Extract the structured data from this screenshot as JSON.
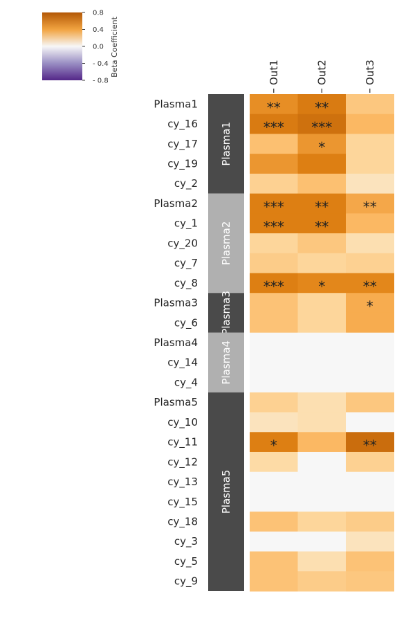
{
  "chart_data": {
    "type": "heatmap",
    "colorbar": {
      "label": "Beta Coefficient",
      "ticks": [
        "0.8",
        "0.4",
        "0.0",
        "-0.4",
        "-0.8"
      ],
      "vmin": -0.8,
      "vmax": 0.8,
      "colors": {
        "low": "#542788",
        "mid": "#f7f7f7",
        "high": "#b35806"
      }
    },
    "columns": [
      "Out1",
      "Out2",
      "Out3"
    ],
    "rows": [
      "Plasma1",
      "cy_16",
      "cy_17",
      "cy_19",
      "cy_2",
      "Plasma2",
      "cy_1",
      "cy_20",
      "cy_7",
      "cy_8",
      "Plasma3",
      "cy_6",
      "Plasma4",
      "cy_14",
      "cy_4",
      "Plasma5",
      "cy_10",
      "cy_11",
      "cy_12",
      "cy_13",
      "cy_15",
      "cy_18",
      "cy_3",
      "cy_5",
      "cy_9"
    ],
    "groups": [
      {
        "label": "Plasma1",
        "start": 0,
        "count": 5,
        "color": "#4a4a4a"
      },
      {
        "label": "Plasma2",
        "start": 5,
        "count": 5,
        "color": "#b0b0b0"
      },
      {
        "label": "Plasma3",
        "start": 10,
        "count": 2,
        "color": "#4a4a4a"
      },
      {
        "label": "Plasma4",
        "start": 12,
        "count": 3,
        "color": "#b0b0b0"
      },
      {
        "label": "Plasma5",
        "start": 15,
        "count": 10,
        "color": "#4a4a4a"
      }
    ],
    "values": [
      [
        0.45,
        0.55,
        0.22
      ],
      [
        0.55,
        0.62,
        0.28
      ],
      [
        0.25,
        0.42,
        0.16
      ],
      [
        0.42,
        0.52,
        0.16
      ],
      [
        0.18,
        0.25,
        0.1
      ],
      [
        0.52,
        0.52,
        0.35
      ],
      [
        0.52,
        0.52,
        0.28
      ],
      [
        0.16,
        0.22,
        0.12
      ],
      [
        0.2,
        0.16,
        0.18
      ],
      [
        0.52,
        0.48,
        0.48
      ],
      [
        0.24,
        0.16,
        0.33
      ],
      [
        0.24,
        0.16,
        0.33
      ],
      [
        0.0,
        0.0,
        0.0
      ],
      [
        0.0,
        0.0,
        0.0
      ],
      [
        0.0,
        0.0,
        0.0
      ],
      [
        0.18,
        0.12,
        0.22
      ],
      [
        0.1,
        0.12,
        0.0
      ],
      [
        0.52,
        0.28,
        0.65
      ],
      [
        0.14,
        0.0,
        0.18
      ],
      [
        0.0,
        0.0,
        0.0
      ],
      [
        0.0,
        0.0,
        0.0
      ],
      [
        0.24,
        0.16,
        0.2
      ],
      [
        0.0,
        0.0,
        0.1
      ],
      [
        0.24,
        0.12,
        0.24
      ],
      [
        0.24,
        0.2,
        0.22
      ]
    ],
    "annotations": [
      [
        "**",
        "**",
        ""
      ],
      [
        "***",
        "***",
        ""
      ],
      [
        "",
        "*",
        ""
      ],
      [
        "",
        "",
        ""
      ],
      [
        "",
        "",
        ""
      ],
      [
        "***",
        "**",
        "**"
      ],
      [
        "***",
        "**",
        ""
      ],
      [
        "",
        "",
        ""
      ],
      [
        "",
        "",
        ""
      ],
      [
        "***",
        "*",
        "**"
      ],
      [
        "",
        "",
        "*"
      ],
      [
        "",
        "",
        ""
      ],
      [
        "",
        "",
        ""
      ],
      [
        "",
        "",
        ""
      ],
      [
        "",
        "",
        ""
      ],
      [
        "",
        "",
        ""
      ],
      [
        "",
        "",
        ""
      ],
      [
        "*",
        "",
        "**"
      ],
      [
        "",
        "",
        ""
      ],
      [
        "",
        "",
        ""
      ],
      [
        "",
        "",
        ""
      ],
      [
        "",
        "",
        ""
      ],
      [
        "",
        "",
        ""
      ],
      [
        "",
        "",
        ""
      ],
      [
        "",
        "",
        ""
      ]
    ],
    "title": "",
    "xlabel": "",
    "ylabel": ""
  }
}
